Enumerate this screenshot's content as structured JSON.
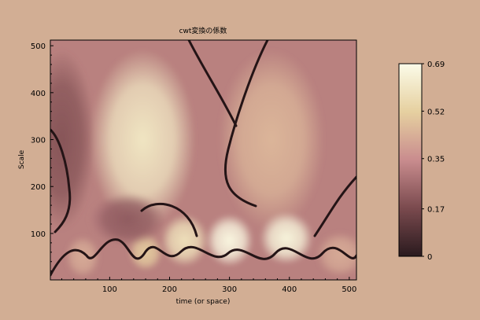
{
  "chart_data": {
    "type": "heatmap",
    "title": "cwt変換の係数",
    "xlabel": "time (or space)",
    "ylabel": "Scale",
    "xlim": [
      1,
      512
    ],
    "ylim": [
      1,
      512
    ],
    "x_ticks": [
      100,
      200,
      300,
      400,
      500
    ],
    "y_ticks": [
      100,
      200,
      300,
      400,
      500
    ],
    "x_tick_labels": [
      "100",
      "200",
      "300",
      "400",
      "500"
    ],
    "y_tick_labels": [
      "100",
      "200",
      "300",
      "400",
      "500"
    ],
    "colorbar": {
      "min": 0,
      "max": 0.69,
      "ticks": [
        0,
        0.17,
        0.35,
        0.52,
        0.69
      ],
      "tick_labels": [
        "0",
        "0.17",
        "0.35",
        "0.52",
        "0.69"
      ],
      "colormap": [
        "#2a1a1e",
        "#7a4a4e",
        "#c98c8e",
        "#e6d0a0",
        "#fbfbe8"
      ]
    },
    "blobs": [
      {
        "x": 155,
        "y": 300,
        "sx": 55,
        "sy": 120,
        "value": 0.6
      },
      {
        "x": 370,
        "y": 300,
        "sx": 55,
        "sy": 120,
        "value": 0.45
      },
      {
        "x": 20,
        "y": 300,
        "sx": 35,
        "sy": 120,
        "value": 0.2
      },
      {
        "x": 100,
        "y": 130,
        "sx": 22,
        "sy": 25,
        "value": 0.33
      },
      {
        "x": 225,
        "y": 85,
        "sx": 25,
        "sy": 35,
        "value": 0.58
      },
      {
        "x": 300,
        "y": 85,
        "sx": 25,
        "sy": 35,
        "value": 0.67
      },
      {
        "x": 395,
        "y": 90,
        "sx": 28,
        "sy": 35,
        "value": 0.66
      },
      {
        "x": 55,
        "y": 50,
        "sx": 18,
        "sy": 28,
        "value": 0.42
      },
      {
        "x": 160,
        "y": 60,
        "sx": 18,
        "sy": 25,
        "value": 0.5
      },
      {
        "x": 485,
        "y": 55,
        "sx": 25,
        "sy": 30,
        "value": 0.42
      },
      {
        "x": 130,
        "y": 130,
        "sx": 40,
        "sy": 35,
        "value": 0.22
      }
    ]
  }
}
